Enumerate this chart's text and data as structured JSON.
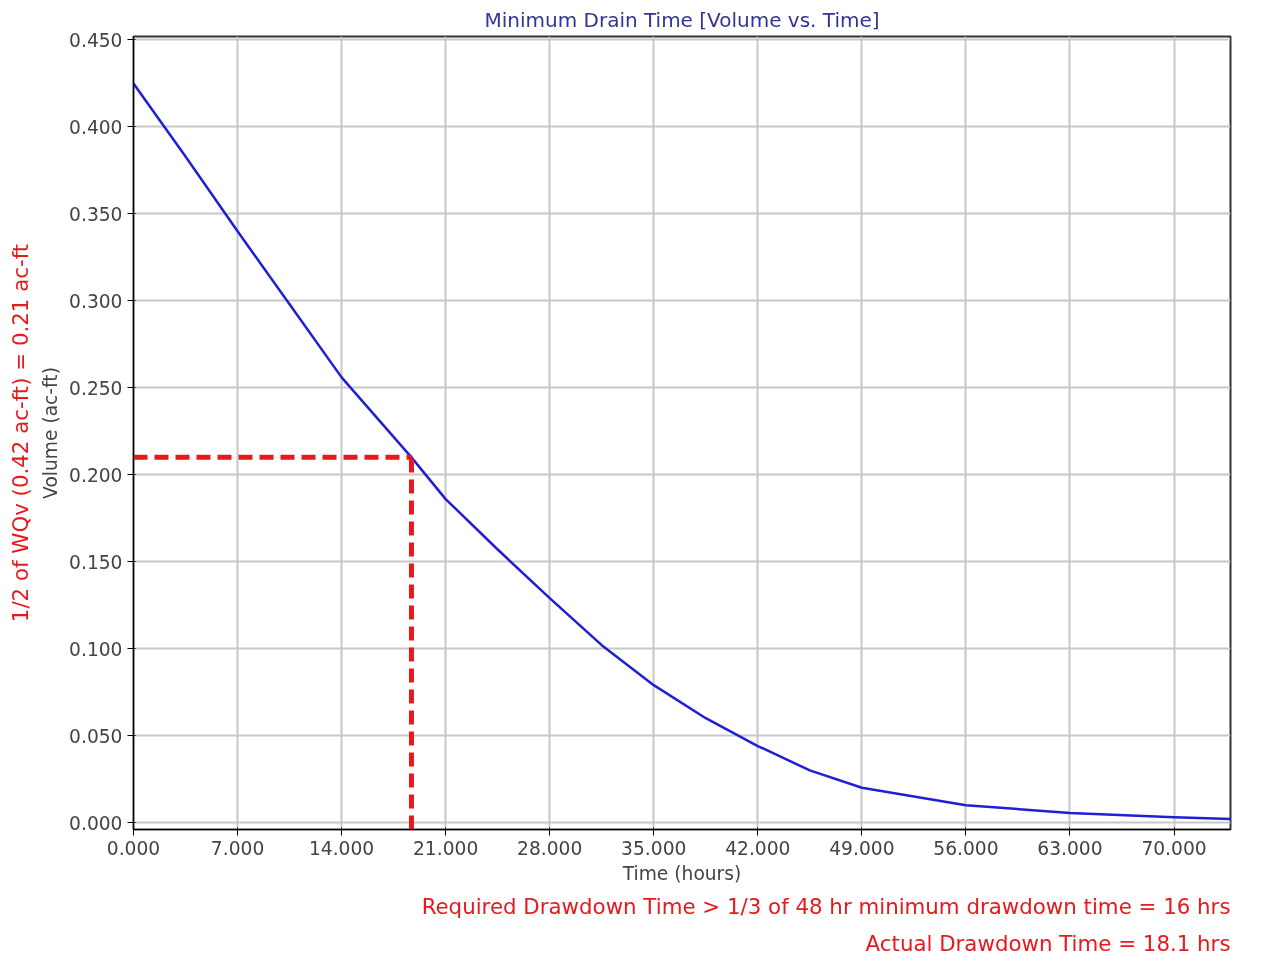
{
  "chart_data": {
    "type": "line",
    "title": "Minimum Drain Time [Volume vs. Time]",
    "xlabel": "Time (hours)",
    "ylabel": "Volume (ac-ft)",
    "x": [
      0,
      3.5,
      7,
      10.5,
      14,
      18.7,
      21,
      24.5,
      28,
      31.5,
      35,
      38.5,
      42,
      45.5,
      49,
      56,
      63,
      70,
      73.8
    ],
    "series": [
      {
        "color": "#1f1fd6",
        "values": [
          0.425,
          0.383,
          0.34,
          0.298,
          0.256,
          0.21,
          0.186,
          0.157,
          0.129,
          0.102,
          0.079,
          0.06,
          0.044,
          0.03,
          0.02,
          0.01,
          0.0055,
          0.003,
          0.002
        ]
      }
    ],
    "xlim": [
      0,
      73.8
    ],
    "ylim": [
      -0.004,
      0.452
    ],
    "xticks": [
      {
        "value": 0,
        "label": "0.000"
      },
      {
        "value": 7,
        "label": "7.000"
      },
      {
        "value": 14,
        "label": "14.000"
      },
      {
        "value": 21,
        "label": "21.000"
      },
      {
        "value": 28,
        "label": "28.000"
      },
      {
        "value": 35,
        "label": "35.000"
      },
      {
        "value": 42,
        "label": "42.000"
      },
      {
        "value": 49,
        "label": "49.000"
      },
      {
        "value": 56,
        "label": "56.000"
      },
      {
        "value": 63,
        "label": "63.000"
      },
      {
        "value": 70,
        "label": "70.000"
      }
    ],
    "yticks": [
      {
        "value": 0,
        "label": "0.000"
      },
      {
        "value": 0.05,
        "label": "0.050"
      },
      {
        "value": 0.1,
        "label": "0.100"
      },
      {
        "value": 0.15,
        "label": "0.150"
      },
      {
        "value": 0.2,
        "label": "0.200"
      },
      {
        "value": 0.25,
        "label": "0.250"
      },
      {
        "value": 0.3,
        "label": "0.300"
      },
      {
        "value": 0.35,
        "label": "0.350"
      },
      {
        "value": 0.4,
        "label": "0.400"
      },
      {
        "value": 0.45,
        "label": "0.450"
      }
    ],
    "grid": true,
    "line_style": "solid",
    "marker": "none",
    "ref_lines": [
      {
        "axis": "y",
        "value": 0.21,
        "label": "1/2 of WQv (0.42 ac-ft) = 0.21 ac-ft",
        "color": "#e8191c",
        "line_style": "dashed"
      },
      {
        "axis": "x",
        "value": 18.7,
        "label": null,
        "color": "#e8191c",
        "line_style": "dashed"
      }
    ],
    "annotations": [
      "Required Drawdown Time > 1/3 of 48 hr minimum drawdown time = 16 hrs",
      "Actual Drawdown Time = 18.1 hrs"
    ]
  }
}
